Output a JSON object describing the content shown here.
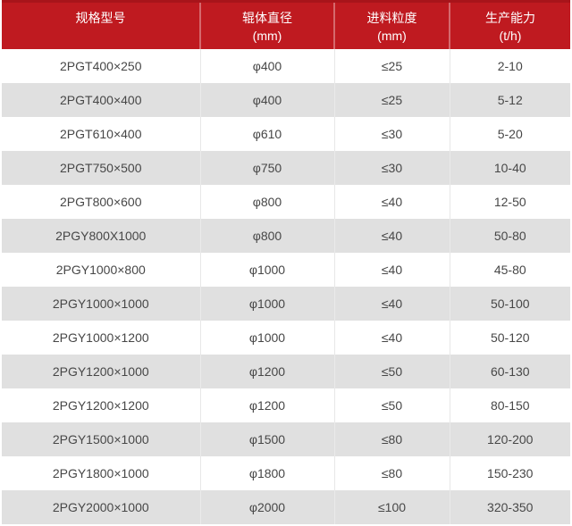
{
  "colors": {
    "header_bg": "#bf1a20",
    "header_top_border": "#a8141a",
    "header_divider": "rgba(255,255,255,0.35)",
    "header_text": "#ffffff",
    "row_white": "#ffffff",
    "row_gray": "#e0e0e0",
    "cell_divider": "#e7e7e7",
    "cell_text": "#474747"
  },
  "table": {
    "columns": [
      {
        "title": "规格型号",
        "unit": ""
      },
      {
        "title": "辊体直径",
        "unit": "(mm)"
      },
      {
        "title": "进料粒度",
        "unit": "(mm)"
      },
      {
        "title": "生产能力",
        "unit": "(t/h)"
      }
    ],
    "rows": [
      [
        "2PGT400×250",
        "φ400",
        "≤25",
        "2-10"
      ],
      [
        "2PGT400×400",
        "φ400",
        "≤25",
        "5-12"
      ],
      [
        "2PGT610×400",
        "φ610",
        "≤30",
        "5-20"
      ],
      [
        "2PGT750×500",
        "φ750",
        "≤30",
        "10-40"
      ],
      [
        "2PGT800×600",
        "φ800",
        "≤40",
        "12-50"
      ],
      [
        "2PGY800X1000",
        "φ800",
        "≤40",
        "50-80"
      ],
      [
        "2PGY1000×800",
        "φ1000",
        "≤40",
        "45-80"
      ],
      [
        "2PGY1000×1000",
        "φ1000",
        "≤40",
        "50-100"
      ],
      [
        "2PGY1000×1200",
        "φ1000",
        "≤40",
        "50-120"
      ],
      [
        "2PGY1200×1000",
        "φ1200",
        "≤50",
        "60-130"
      ],
      [
        "2PGY1200×1200",
        "φ1200",
        "≤50",
        "80-150"
      ],
      [
        "2PGY1500×1000",
        "φ1500",
        "≤80",
        "120-200"
      ],
      [
        "2PGY1800×1000",
        "φ1800",
        "≤80",
        "150-230"
      ],
      [
        "2PGY2000×1000",
        "φ2000",
        "≤100",
        "320-350"
      ]
    ]
  },
  "chart_data": {
    "type": "table",
    "title": "",
    "columns": [
      "规格型号",
      "辊体直径 (mm)",
      "进料粒度 (mm)",
      "生产能力 (t/h)"
    ],
    "rows": [
      [
        "2PGT400×250",
        "φ400",
        "≤25",
        "2-10"
      ],
      [
        "2PGT400×400",
        "φ400",
        "≤25",
        "5-12"
      ],
      [
        "2PGT610×400",
        "φ610",
        "≤30",
        "5-20"
      ],
      [
        "2PGT750×500",
        "φ750",
        "≤30",
        "10-40"
      ],
      [
        "2PGT800×600",
        "φ800",
        "≤40",
        "12-50"
      ],
      [
        "2PGY800X1000",
        "φ800",
        "≤40",
        "50-80"
      ],
      [
        "2PGY1000×800",
        "φ1000",
        "≤40",
        "45-80"
      ],
      [
        "2PGY1000×1000",
        "φ1000",
        "≤40",
        "50-100"
      ],
      [
        "2PGY1000×1200",
        "φ1000",
        "≤40",
        "50-120"
      ],
      [
        "2PGY1200×1000",
        "φ1200",
        "≤50",
        "60-130"
      ],
      [
        "2PGY1200×1200",
        "φ1200",
        "≤50",
        "80-150"
      ],
      [
        "2PGY1500×1000",
        "φ1500",
        "≤80",
        "120-200"
      ],
      [
        "2PGY1800×1000",
        "φ1800",
        "≤80",
        "150-230"
      ],
      [
        "2PGY2000×1000",
        "φ2000",
        "≤100",
        "320-350"
      ]
    ]
  }
}
